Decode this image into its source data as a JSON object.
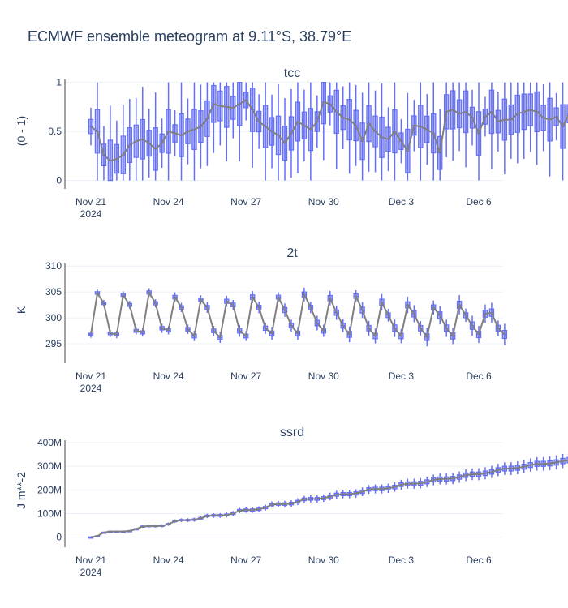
{
  "figure": {
    "title": "ECMWF ensemble meteogram at 9.11°S, 38.79°E"
  },
  "colors": {
    "box": "#636efa",
    "box_fill": "rgba(99,110,250,0.5)",
    "median_line": "#808080",
    "grid": "#ebf0f8",
    "text": "#2a3f5f"
  },
  "chart_data": [
    {
      "type": "box",
      "title": "tcc",
      "ylabel": "(0 - 1)",
      "x_range_days": [
        "Nov 20 18:00",
        "Dec 6 12:00"
      ],
      "x_ticks": [
        {
          "label": "Nov 21",
          "sublabel": "2024"
        },
        {
          "label": "Nov 24"
        },
        {
          "label": "Nov 27"
        },
        {
          "label": "Nov 30"
        },
        {
          "label": "Dec 3"
        },
        {
          "label": "Dec 6"
        }
      ],
      "ylim": [
        -0.02,
        1.03
      ],
      "y_ticks": [
        "0",
        "0.5",
        "1"
      ],
      "y_tick_values": [
        0,
        0.5,
        1
      ],
      "time_step_hours": 6,
      "start": "Nov 21 00:00",
      "medians": [
        0.55,
        0.5,
        0.26,
        0.2,
        0.22,
        0.26,
        0.36,
        0.4,
        0.42,
        0.38,
        0.32,
        0.38,
        0.5,
        0.48,
        0.46,
        0.5,
        0.52,
        0.55,
        0.63,
        0.78,
        0.76,
        0.75,
        0.74,
        0.78,
        0.82,
        0.72,
        0.6,
        0.55,
        0.5,
        0.46,
        0.38,
        0.48,
        0.6,
        0.56,
        0.52,
        0.6,
        0.8,
        0.78,
        0.7,
        0.64,
        0.62,
        0.56,
        0.4,
        0.58,
        0.5,
        0.44,
        0.42,
        0.5,
        0.4,
        0.3,
        0.56,
        0.55,
        0.52,
        0.48,
        0.28,
        0.7,
        0.72,
        0.68,
        0.7,
        0.64,
        0.48,
        0.65,
        0.7,
        0.6,
        0.62,
        0.62,
        0.68,
        0.7,
        0.72,
        0.7,
        0.64,
        0.62,
        0.65,
        0.55,
        0.68,
        0.75
      ]
    },
    {
      "type": "box",
      "title": "2t",
      "ylabel": "K",
      "x_ticks": [
        {
          "label": "Nov 21",
          "sublabel": "2024"
        },
        {
          "label": "Nov 24"
        },
        {
          "label": "Nov 27"
        },
        {
          "label": "Nov 30"
        },
        {
          "label": "Dec 3"
        },
        {
          "label": "Dec 6"
        }
      ],
      "ylim": [
        292.5,
        310.5
      ],
      "y_ticks": [
        "295",
        "300",
        "305",
        "310"
      ],
      "y_tick_values": [
        295,
        300,
        305,
        310
      ],
      "time_step_hours": 6,
      "start": "Nov 21 00:00",
      "medians": [
        296.8,
        304.8,
        302.8,
        297.0,
        296.8,
        304.4,
        302.5,
        297.5,
        297.2,
        304.9,
        302.8,
        298.0,
        297.6,
        304.0,
        302.0,
        297.8,
        296.5,
        303.5,
        302.0,
        297.5,
        296.2,
        303.2,
        302.5,
        297.5,
        296.5,
        304.0,
        302.0,
        298.0,
        297.0,
        304.0,
        301.5,
        298.5,
        297.0,
        304.5,
        302.0,
        299.0,
        297.5,
        303.8,
        301.0,
        298.5,
        296.8,
        304.2,
        301.5,
        298.0,
        296.5,
        303.0,
        300.5,
        298.0,
        296.5,
        302.5,
        300.8,
        298.0,
        296.3,
        302.0,
        300.5,
        298.0,
        296.5,
        302.5,
        300.5,
        298.5,
        296.8,
        300.8,
        301.0,
        298.0,
        296.8
      ]
    },
    {
      "type": "box",
      "title": "ssrd",
      "ylabel": "J m**-2",
      "x_ticks": [
        {
          "label": "Nov 21",
          "sublabel": "2024"
        },
        {
          "label": "Nov 24"
        },
        {
          "label": "Nov 27"
        },
        {
          "label": "Nov 30"
        },
        {
          "label": "Dec 3"
        },
        {
          "label": "Dec 6"
        }
      ],
      "ylim": [
        -15000000,
        410000000
      ],
      "y_ticks": [
        "0",
        "100M",
        "200M",
        "300M",
        "400M"
      ],
      "y_tick_values": [
        0,
        100000000,
        200000000,
        300000000,
        400000000
      ],
      "time_step_hours": 6,
      "start": "Nov 21 00:00",
      "medians": [
        0,
        5000000,
        20000000,
        24000000,
        24000000,
        24000000,
        26000000,
        34000000,
        45000000,
        47000000,
        47000000,
        48000000,
        55000000,
        68000000,
        72000000,
        72000000,
        74000000,
        80000000,
        90000000,
        92000000,
        92000000,
        94000000,
        100000000,
        113000000,
        115000000,
        115000000,
        118000000,
        125000000,
        138000000,
        140000000,
        140000000,
        142000000,
        150000000,
        160000000,
        162000000,
        162000000,
        165000000,
        172000000,
        180000000,
        182000000,
        182000000,
        185000000,
        192000000,
        202000000,
        204000000,
        204000000,
        207000000,
        212000000,
        222000000,
        226000000,
        226000000,
        228000000,
        234000000,
        242000000,
        246000000,
        246000000,
        248000000,
        254000000,
        262000000,
        266000000,
        266000000,
        270000000,
        276000000,
        284000000,
        290000000,
        290000000,
        293000000,
        298000000,
        305000000,
        310000000,
        310000000,
        312000000,
        316000000,
        322000000,
        326000000,
        326000000
      ]
    }
  ]
}
